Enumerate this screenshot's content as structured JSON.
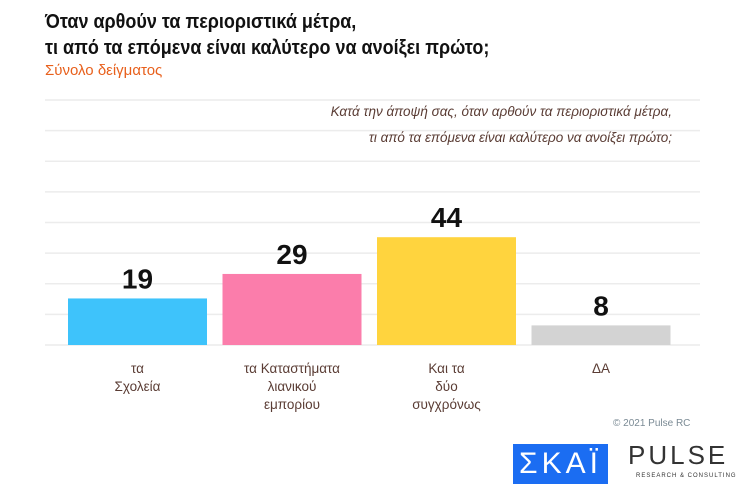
{
  "chart_data": {
    "type": "bar",
    "title": "Όταν αρθούν τα περιοριστικά μέτρα, τι από τα επόμενα είναι καλύτερο να ανοίξει πρώτο;",
    "title_lines": [
      "Όταν αρθούν τα περιοριστικά μέτρα,",
      "τι από τα επόμενα είναι καλύτερο να ανοίξει πρώτο;"
    ],
    "subtitle": "Σύνολο δείγματος",
    "question_lines": [
      "Κατά την άποψή σας, όταν αρθούν τα περιοριστικά μέτρα,",
      "τι από τα επόμενα είναι καλύτερο να ανοίξει πρώτο;"
    ],
    "categories": [
      [
        "τα",
        "Σχολεία"
      ],
      [
        "τα Καταστήματα",
        "λιανικού",
        "εμπορίου"
      ],
      [
        "Και τα",
        "δύο",
        "συγχρόνως"
      ],
      [
        "ΔΑ"
      ]
    ],
    "values": [
      19,
      29,
      44,
      8
    ],
    "colors": [
      "#3ec3fb",
      "#fb7dab",
      "#ffd43e",
      "#d3d3d3"
    ],
    "ylim": [
      0,
      100
    ],
    "grid": true
  },
  "footer": {
    "copyright": "© 2021 Pulse RC",
    "logo_skai": "ΣΚΑΪ",
    "logo_pulse": "PULSE",
    "logo_pulse_sub": "RESEARCH & CONSULTING"
  }
}
